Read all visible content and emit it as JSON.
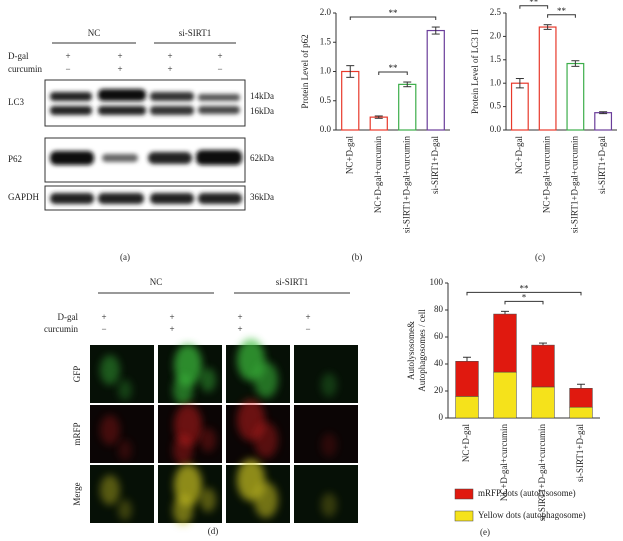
{
  "blot": {
    "groups": [
      "NC",
      "si-SIRT1"
    ],
    "conditions": [
      {
        "label": "D-gal",
        "signs": [
          "+",
          "+",
          "+",
          "+"
        ]
      },
      {
        "label": "curcumin",
        "signs": [
          "−",
          "+",
          "+",
          "−"
        ]
      }
    ],
    "rows": [
      {
        "label": "LC3",
        "markers": [
          "14kDa",
          "16kDa"
        ]
      },
      {
        "label": "P62",
        "markers": [
          "62kDa"
        ]
      },
      {
        "label": "GAPDH",
        "markers": [
          "36kDa"
        ]
      }
    ],
    "panel_label": "(a)"
  },
  "microscopy": {
    "groups": [
      "NC",
      "si-SIRT1"
    ],
    "conditions": [
      {
        "label": "D-gal",
        "signs": [
          "+",
          "+",
          "+",
          "+"
        ]
      },
      {
        "label": "curcumin",
        "signs": [
          "−",
          "+",
          "+",
          "−"
        ]
      }
    ],
    "rows": [
      "GFP",
      "mRFP",
      "Merge"
    ],
    "panel_label": "(d)"
  },
  "chart_data": [
    {
      "type": "bar",
      "panel_label": "(b)",
      "ylabel": "Protein Level of p62",
      "categories": [
        "NC+D-gal",
        "NC+D-gal+curcumin",
        "si-SIRT1+D-gal+curcumin",
        "si-SIRT1+D-gal"
      ],
      "values": [
        1.0,
        0.22,
        0.78,
        1.7
      ],
      "errors": [
        0.1,
        0.02,
        0.04,
        0.06
      ],
      "colors": [
        "#e8392b",
        "#e8392b",
        "#3cae4a",
        "#6a3d9a"
      ],
      "ylim": [
        0,
        2.0
      ],
      "yticks": [
        {
          "value": 0,
          "label": "0.0"
        },
        {
          "value": 0.5,
          "label": "0.5"
        },
        {
          "value": 1,
          "label": "1.0"
        },
        {
          "value": 1.5,
          "label": "1.5"
        },
        {
          "value": 2,
          "label": "2.0"
        }
      ],
      "annotations": [
        {
          "text": "**",
          "from": 1,
          "to": 2
        },
        {
          "text": "**",
          "from": 0,
          "to": 3
        }
      ]
    },
    {
      "type": "bar",
      "panel_label": "(c)",
      "ylabel": "Protein Level of LC3 II",
      "categories": [
        "NC+D-gal",
        "NC+D-gal+curcumin",
        "si-SIRT1+D-gal+curcumin",
        "si-SIRT1+D-gal"
      ],
      "values": [
        1.0,
        2.2,
        1.42,
        0.37
      ],
      "errors": [
        0.1,
        0.05,
        0.06,
        0.02
      ],
      "colors": [
        "#e8392b",
        "#e8392b",
        "#3cae4a",
        "#6a3d9a"
      ],
      "ylim": [
        0,
        2.5
      ],
      "yticks": [
        {
          "value": 0,
          "label": "0.0"
        },
        {
          "value": 0.5,
          "label": "0.5"
        },
        {
          "value": 1,
          "label": "1.0"
        },
        {
          "value": 1.5,
          "label": "1.5"
        },
        {
          "value": 2,
          "label": "2.0"
        },
        {
          "value": 2.5,
          "label": "2.5"
        }
      ],
      "annotations": [
        {
          "text": "**",
          "from": 1,
          "to": 2
        },
        {
          "text": "**",
          "from": 0,
          "to": 1
        },
        {
          "text": "**",
          "from": 0,
          "to": 3
        }
      ]
    },
    {
      "type": "stacked_bar",
      "panel_label": "(e)",
      "ylabel": [
        "Autolysosome&",
        "Autophagosomes / cell"
      ],
      "categories": [
        "NC+D-gal",
        "NC+D-gal+curcumin",
        "si-SIRT1+D-gal+curcumin",
        "si-SIRT1+D-gal"
      ],
      "series": [
        {
          "name": "Yellow dots (autophagosome)",
          "color": "#f5e21b",
          "values": [
            16,
            34,
            23,
            8
          ],
          "errors": [
            2,
            2,
            1.5,
            2
          ]
        },
        {
          "name": "mRFP dots (autolysosome)",
          "color": "#e0190f",
          "values": [
            26,
            43,
            31,
            14
          ],
          "errors": [
            3,
            2,
            1.5,
            3
          ]
        }
      ],
      "ylim": [
        0,
        100
      ],
      "yticks": [
        0,
        20,
        40,
        60,
        80,
        100
      ],
      "annotations": [
        {
          "text": "*",
          "from": 1,
          "to": 2
        },
        {
          "text": "**",
          "from": 0,
          "to": 3
        }
      ]
    }
  ]
}
